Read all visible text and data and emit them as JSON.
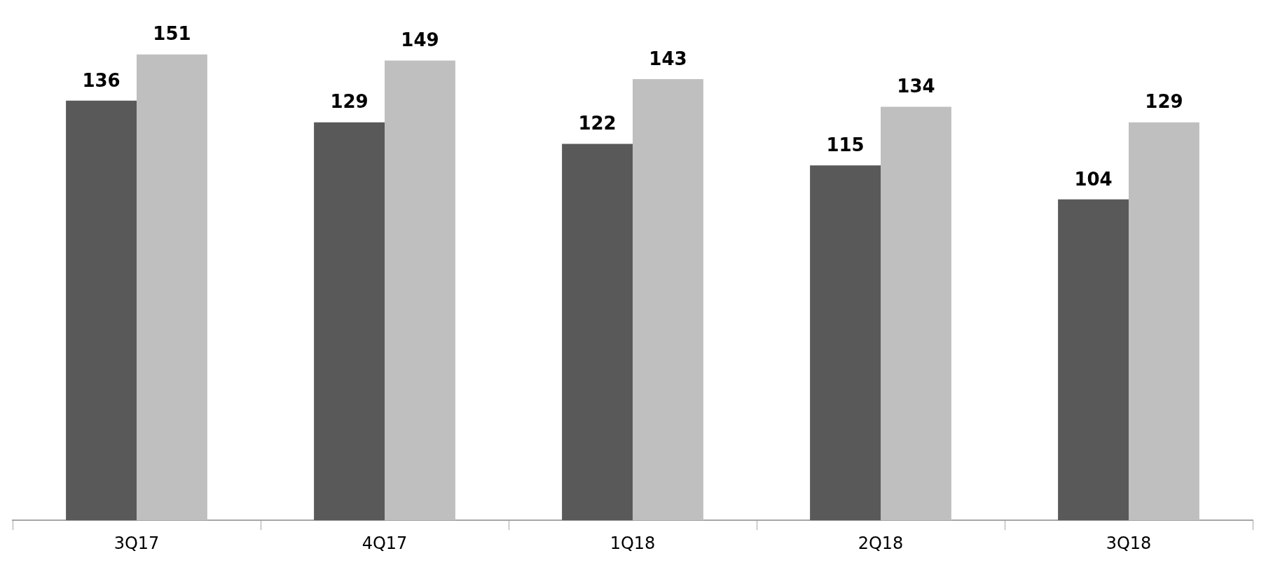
{
  "chart_data": {
    "type": "bar",
    "categories": [
      "3Q17",
      "4Q17",
      "1Q18",
      "2Q18",
      "3Q18"
    ],
    "series": [
      {
        "color": "#595959",
        "values": [
          136,
          129,
          122,
          115,
          104
        ]
      },
      {
        "color": "#bfbfbf",
        "values": [
          151,
          149,
          143,
          134,
          129
        ]
      }
    ],
    "data_labels": true,
    "grid": false
  }
}
